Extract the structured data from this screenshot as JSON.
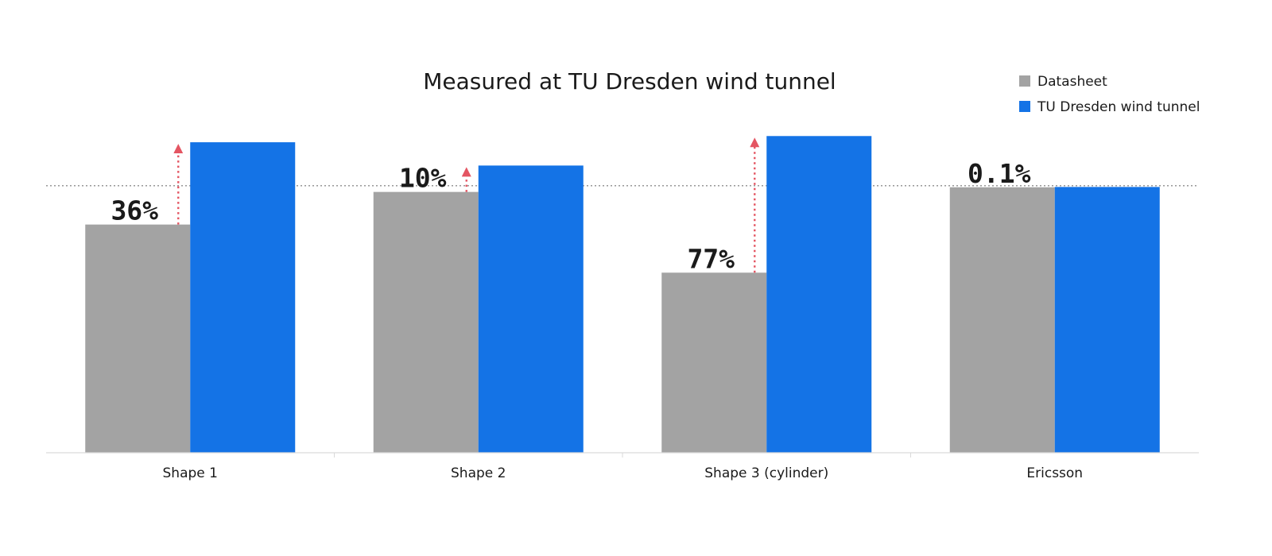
{
  "chart_data": {
    "type": "bar",
    "title": "Measured at TU Dresden wind tunnel",
    "categories": [
      "Shape 1",
      "Shape 2",
      "Shape 3 (cylinder)",
      "Ericsson"
    ],
    "series": [
      {
        "name": "Datasheet",
        "color": "#a3a3a3",
        "values": [
          73.5,
          84,
          58,
          85.5
        ]
      },
      {
        "name": "TU Dresden wind tunnel",
        "color": "#1473e6",
        "values": [
          100,
          92.5,
          102,
          85.6
        ]
      }
    ],
    "increase_labels": [
      "36%",
      "10%",
      "77%",
      "0.1%"
    ],
    "reference_line_value": 86,
    "ylim": [
      0,
      110
    ],
    "legend": "top-right",
    "grid": false,
    "annotation_color": "#e45562",
    "xlabel": "",
    "ylabel": ""
  }
}
